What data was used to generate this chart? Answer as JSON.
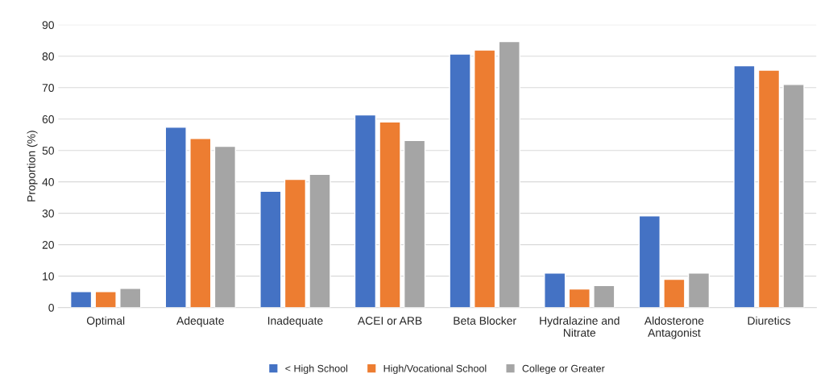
{
  "chart_data": {
    "type": "bar",
    "ylabel": "Proportion (%)",
    "categories": [
      "Optimal",
      "Adequate",
      "Inadequate",
      "ACEI or ARB",
      "Beta Blocker",
      "Hydralazine and\nNitrate",
      "Aldosterone\nAntagonist",
      "Diuretics"
    ],
    "series": [
      {
        "name": "< High School",
        "color": "#4472c4",
        "values": [
          5.1,
          57.4,
          37,
          61.3,
          80.7,
          11,
          29.2,
          77
        ]
      },
      {
        "name": "High/Vocational School",
        "color": "#ed7d31",
        "values": [
          5.1,
          53.8,
          40.8,
          59.1,
          82,
          5.9,
          9,
          75.6
        ]
      },
      {
        "name": "College or Greater",
        "color": "#a5a5a5",
        "values": [
          6.1,
          51.3,
          42.4,
          53.2,
          84.7,
          7,
          11,
          71
        ]
      }
    ],
    "ylim": [
      0,
      90
    ],
    "yticks": [
      0,
      10,
      20,
      30,
      40,
      50,
      60,
      70,
      80,
      90
    ],
    "grid": "y",
    "legend": "bottom"
  }
}
